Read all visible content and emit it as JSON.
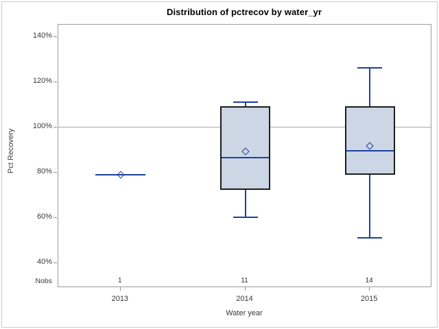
{
  "figure": {
    "title": "Distribution of pctrecov by water_yr",
    "y_axis": {
      "label": "Pct Recovery",
      "tick_labels": [
        "140%",
        "120%",
        "100%",
        "80%",
        "60%",
        "40%"
      ],
      "tick_values": [
        140,
        120,
        100,
        80,
        60,
        40
      ]
    },
    "x_axis": {
      "label": "Water year",
      "categories": [
        "2013",
        "2014",
        "2015"
      ]
    },
    "nobs_row": {
      "label": "Nobs",
      "values": [
        "1",
        "11",
        "14"
      ]
    },
    "colors": {
      "box_fill": "#ccd6e4",
      "box_border": "#1c1c1c",
      "line_blue": "#1d3f9e",
      "reference_line": "#a8a8a8",
      "frame": "#9b9b9b",
      "figure_border": "#c9c9c9"
    }
  },
  "chart_data": {
    "type": "boxplot",
    "title": "Distribution of pctrecov by water_yr",
    "xlabel": "Water year",
    "ylabel": "Pct Recovery",
    "ylim": [
      29,
      145
    ],
    "y_ticks_pct": [
      40,
      60,
      80,
      100,
      120,
      140
    ],
    "reference_line_pct": 100,
    "grid": false,
    "categories": [
      "2013",
      "2014",
      "2015"
    ],
    "nobs": [
      1,
      11,
      14
    ],
    "series": [
      {
        "category": "2013",
        "n": 1,
        "low": 78.8,
        "q1": 78.8,
        "median": 78.8,
        "q3": 78.8,
        "high": 78.8,
        "mean": 78.8
      },
      {
        "category": "2014",
        "n": 11,
        "low": 60,
        "q1": 72,
        "median": 86.5,
        "q3": 109,
        "high": 111,
        "mean": 89
      },
      {
        "category": "2015",
        "n": 14,
        "low": 51,
        "q1": 78.8,
        "median": 89.5,
        "q3": 109,
        "high": 126,
        "mean": 91.5
      }
    ]
  }
}
